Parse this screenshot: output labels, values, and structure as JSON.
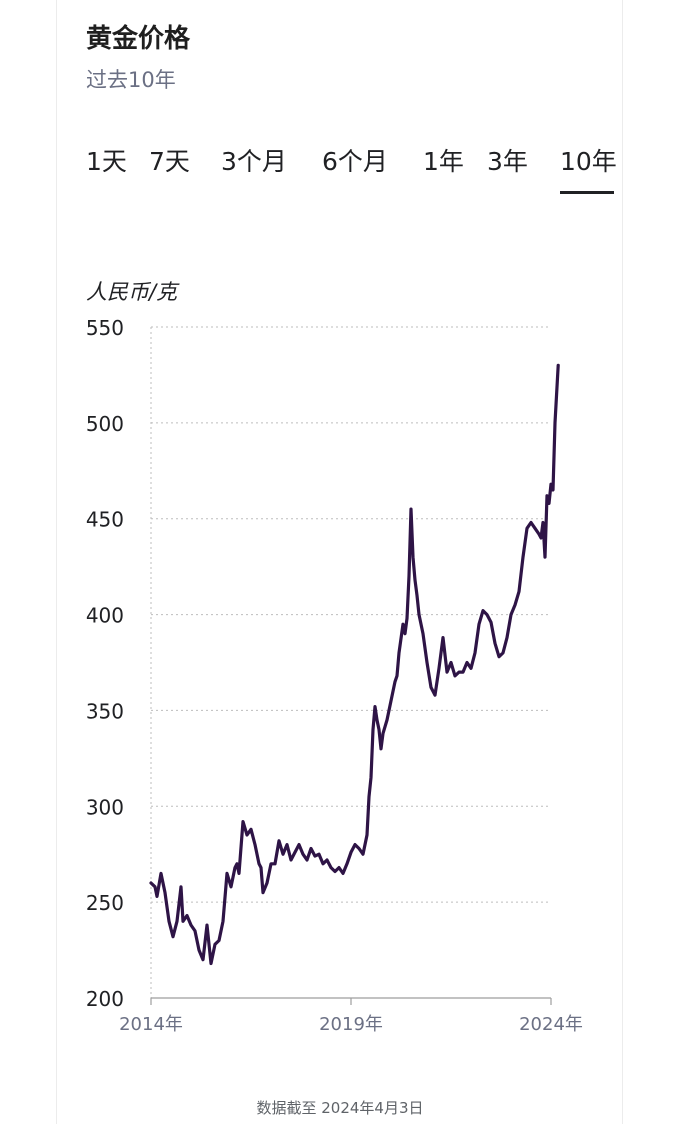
{
  "header": {
    "title": "黄金价格",
    "subtitle": "过去10年"
  },
  "tabs": [
    {
      "label": "1天",
      "active": false
    },
    {
      "label": "7天",
      "active": false
    },
    {
      "label": "3个月",
      "active": false
    },
    {
      "label": "6个月",
      "active": false
    },
    {
      "label": "1年",
      "active": false
    },
    {
      "label": "3年",
      "active": false
    },
    {
      "label": "10年",
      "active": true
    }
  ],
  "footer": {
    "note": "数据截至 2024年4月3日"
  },
  "colors": {
    "line": "#2e1446",
    "grid": "#bdbdbd",
    "text": "#202124",
    "muted": "#6b7084"
  },
  "chart_data": {
    "type": "line",
    "ylabel": "人民币/克",
    "ylim": [
      200,
      550
    ],
    "yticks": [
      200,
      250,
      300,
      350,
      400,
      450,
      500,
      550
    ],
    "xlim": [
      2014.0,
      2024.0
    ],
    "xticks": [
      {
        "value": 2014.0,
        "label": "2014年"
      },
      {
        "value": 2019.0,
        "label": "2019年"
      },
      {
        "value": 2024.0,
        "label": "2024年"
      }
    ],
    "grid": true,
    "series": [
      {
        "points": [
          [
            2014.0,
            260
          ],
          [
            2014.1,
            258
          ],
          [
            2014.15,
            253
          ],
          [
            2014.25,
            265
          ],
          [
            2014.35,
            255
          ],
          [
            2014.45,
            240
          ],
          [
            2014.55,
            232
          ],
          [
            2014.65,
            240
          ],
          [
            2014.75,
            258
          ],
          [
            2014.8,
            240
          ],
          [
            2014.9,
            243
          ],
          [
            2015.0,
            238
          ],
          [
            2015.1,
            235
          ],
          [
            2015.2,
            225
          ],
          [
            2015.3,
            220
          ],
          [
            2015.4,
            238
          ],
          [
            2015.5,
            218
          ],
          [
            2015.6,
            228
          ],
          [
            2015.7,
            230
          ],
          [
            2015.8,
            240
          ],
          [
            2015.9,
            265
          ],
          [
            2016.0,
            258
          ],
          [
            2016.1,
            268
          ],
          [
            2016.15,
            270
          ],
          [
            2016.2,
            265
          ],
          [
            2016.3,
            292
          ],
          [
            2016.4,
            285
          ],
          [
            2016.5,
            288
          ],
          [
            2016.6,
            280
          ],
          [
            2016.7,
            270
          ],
          [
            2016.75,
            268
          ],
          [
            2016.8,
            255
          ],
          [
            2016.9,
            260
          ],
          [
            2017.0,
            270
          ],
          [
            2017.1,
            270
          ],
          [
            2017.2,
            282
          ],
          [
            2017.3,
            275
          ],
          [
            2017.4,
            280
          ],
          [
            2017.5,
            272
          ],
          [
            2017.6,
            276
          ],
          [
            2017.7,
            280
          ],
          [
            2017.8,
            275
          ],
          [
            2017.9,
            272
          ],
          [
            2018.0,
            278
          ],
          [
            2018.1,
            274
          ],
          [
            2018.2,
            275
          ],
          [
            2018.3,
            270
          ],
          [
            2018.4,
            272
          ],
          [
            2018.5,
            268
          ],
          [
            2018.6,
            266
          ],
          [
            2018.7,
            268
          ],
          [
            2018.8,
            265
          ],
          [
            2018.9,
            270
          ],
          [
            2019.0,
            276
          ],
          [
            2019.1,
            280
          ],
          [
            2019.2,
            278
          ],
          [
            2019.3,
            275
          ],
          [
            2019.4,
            285
          ],
          [
            2019.45,
            305
          ],
          [
            2019.5,
            315
          ],
          [
            2019.55,
            340
          ],
          [
            2019.6,
            352
          ],
          [
            2019.65,
            345
          ],
          [
            2019.7,
            340
          ],
          [
            2019.75,
            330
          ],
          [
            2019.8,
            338
          ],
          [
            2019.9,
            345
          ],
          [
            2020.0,
            355
          ],
          [
            2020.1,
            365
          ],
          [
            2020.15,
            368
          ],
          [
            2020.2,
            380
          ],
          [
            2020.3,
            395
          ],
          [
            2020.35,
            390
          ],
          [
            2020.4,
            398
          ],
          [
            2020.45,
            420
          ],
          [
            2020.5,
            455
          ],
          [
            2020.55,
            430
          ],
          [
            2020.6,
            418
          ],
          [
            2020.65,
            410
          ],
          [
            2020.7,
            400
          ],
          [
            2020.8,
            390
          ],
          [
            2020.9,
            375
          ],
          [
            2021.0,
            362
          ],
          [
            2021.1,
            358
          ],
          [
            2021.2,
            372
          ],
          [
            2021.3,
            388
          ],
          [
            2021.4,
            370
          ],
          [
            2021.5,
            375
          ],
          [
            2021.6,
            368
          ],
          [
            2021.7,
            370
          ],
          [
            2021.8,
            370
          ],
          [
            2021.9,
            375
          ],
          [
            2022.0,
            372
          ],
          [
            2022.1,
            380
          ],
          [
            2022.2,
            395
          ],
          [
            2022.3,
            402
          ],
          [
            2022.4,
            400
          ],
          [
            2022.5,
            396
          ],
          [
            2022.6,
            385
          ],
          [
            2022.7,
            378
          ],
          [
            2022.8,
            380
          ],
          [
            2022.9,
            388
          ],
          [
            2023.0,
            400
          ],
          [
            2023.1,
            405
          ],
          [
            2023.2,
            412
          ],
          [
            2023.3,
            430
          ],
          [
            2023.4,
            445
          ],
          [
            2023.5,
            448
          ],
          [
            2023.6,
            445
          ],
          [
            2023.7,
            442
          ],
          [
            2023.75,
            440
          ],
          [
            2023.8,
            448
          ],
          [
            2023.85,
            430
          ],
          [
            2023.9,
            462
          ],
          [
            2023.95,
            458
          ],
          [
            2024.0,
            468
          ],
          [
            2024.05,
            465
          ],
          [
            2024.1,
            500
          ],
          [
            2024.18,
            530
          ]
        ]
      }
    ]
  }
}
